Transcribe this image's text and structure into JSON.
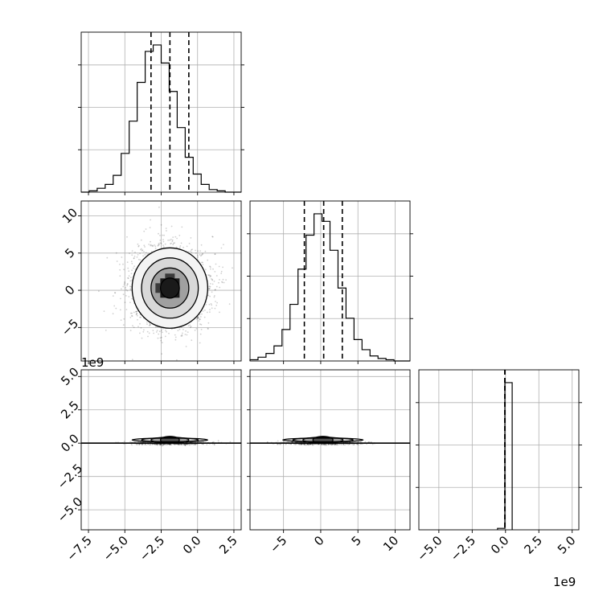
{
  "figure": {
    "y_offset_label": "1e9",
    "x_offset_label": "1e9"
  },
  "chart_data": {
    "type": "corner",
    "title": "",
    "grid": true,
    "contour_levels": 4,
    "params": [
      {
        "index": 0,
        "range": [
          -8.0,
          3.0
        ],
        "ticks": [
          -7.5,
          -5.0,
          -2.5,
          0.0,
          2.5
        ],
        "tick_labels": [
          "−7.5",
          "−5.0",
          "−2.5",
          "0.0",
          "2.5"
        ],
        "mean": -1.9,
        "std": 1.3,
        "quantiles": [
          -3.2,
          -1.9,
          -0.6
        ]
      },
      {
        "index": 1,
        "range": [
          -9.5,
          12.0
        ],
        "ticks": [
          -5,
          0,
          5,
          10
        ],
        "tick_labels": [
          "−5",
          "0",
          "5",
          "10"
        ],
        "mean": 0.3,
        "std": 2.7,
        "quantiles": [
          -2.2,
          0.4,
          2.9
        ]
      },
      {
        "index": 2,
        "range": [
          -6.5,
          5.5
        ],
        "ticks": [
          -5.0,
          -2.5,
          0.0,
          2.5,
          5.0
        ],
        "tick_labels": [
          "−5.0",
          "−2.5",
          "0.0",
          "2.5",
          "5.0"
        ],
        "offset": "1e9",
        "quantiles": [
          -0.05,
          -0.05,
          -0.05
        ]
      }
    ],
    "histograms": [
      {
        "param": 0,
        "bin_edges_from": -8.0,
        "bin_width": 0.55,
        "counts": [
          0,
          1,
          3,
          6,
          13,
          30,
          55,
          85,
          109,
          114,
          100,
          78,
          50,
          27,
          14,
          6,
          2,
          1,
          0,
          0
        ]
      },
      {
        "param": 1,
        "bin_edges_from": -9.5,
        "bin_width": 1.075,
        "counts": [
          1,
          3,
          6,
          12,
          25,
          45,
          73,
          100,
          117,
          111,
          88,
          58,
          34,
          17,
          9,
          4,
          2,
          1,
          0,
          0
        ]
      },
      {
        "param": 2,
        "bars": [
          {
            "from": -0.6,
            "to": -0.05,
            "count": 1
          },
          {
            "from": -0.05,
            "to": 0.5,
            "count": 100
          }
        ]
      }
    ],
    "scatter_2d": [
      {
        "x_param": 0,
        "y_param": 1,
        "center": [
          -1.9,
          0.3
        ],
        "sigma": [
          1.3,
          2.7
        ]
      },
      {
        "x_param": 0,
        "y_param": 2,
        "center": [
          -1.9,
          0.0
        ],
        "sigma": [
          1.3,
          0.12
        ]
      },
      {
        "x_param": 1,
        "y_param": 2,
        "center": [
          0.3,
          0.0
        ],
        "sigma": [
          2.7,
          0.12
        ]
      }
    ]
  }
}
